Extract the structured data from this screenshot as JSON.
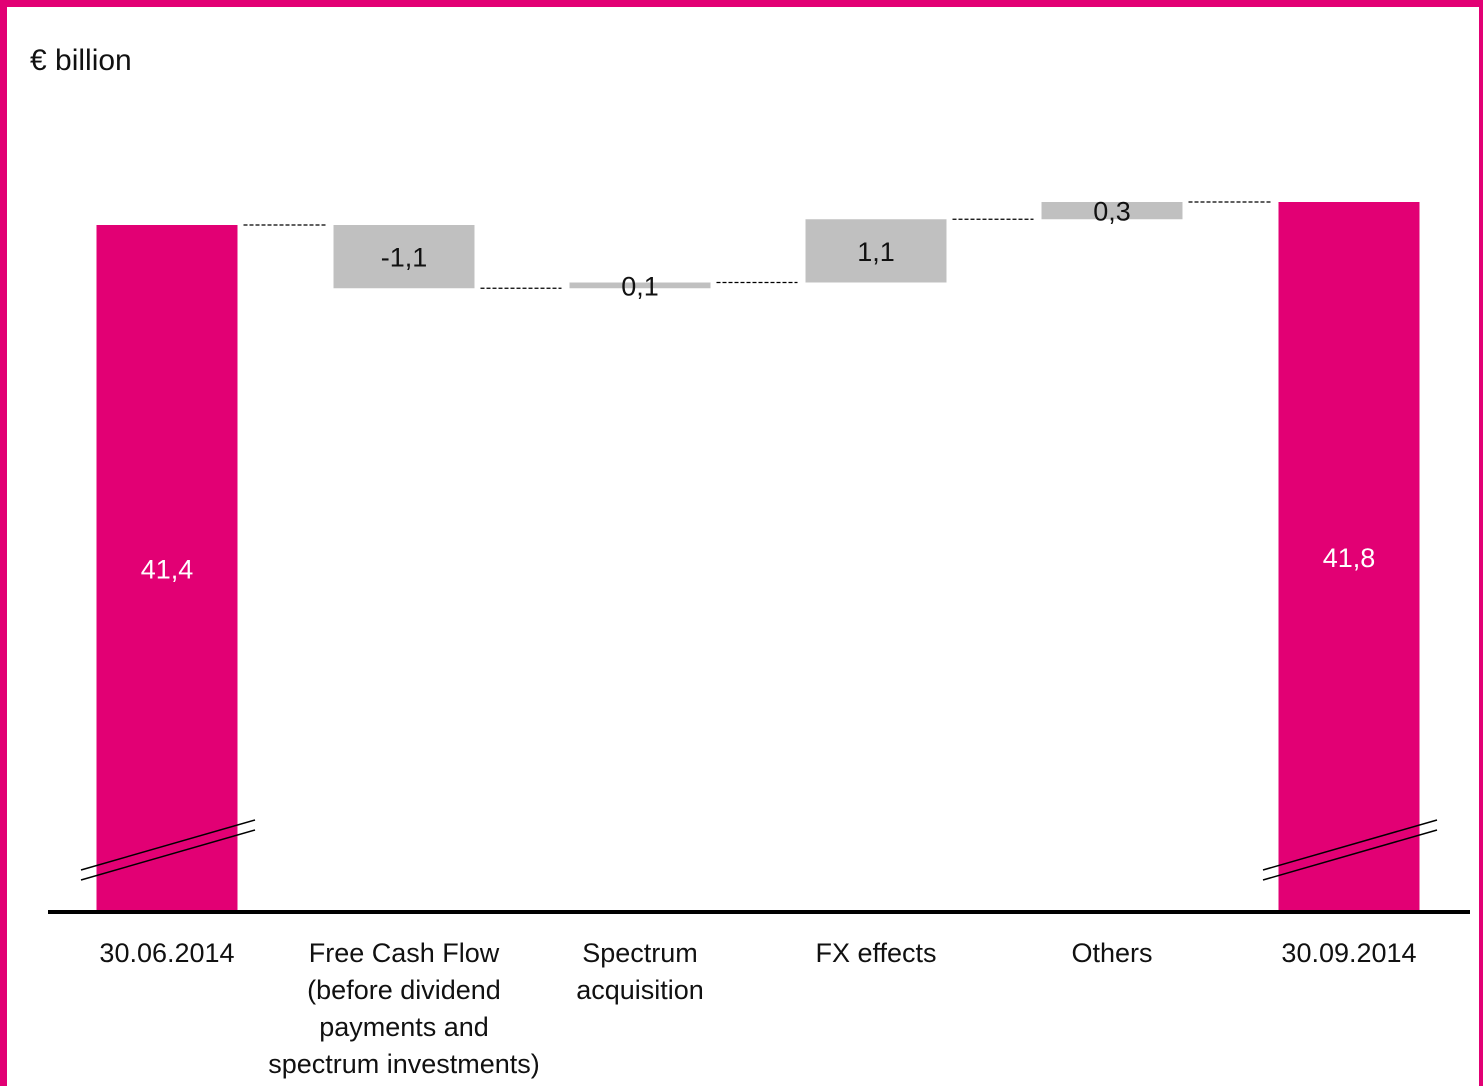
{
  "unit_label": "€ billion",
  "colors": {
    "frame": "#e20074",
    "total_bar": "#e20074",
    "delta_bar": "#c0c0c0",
    "axis": "#000000",
    "total_label": "#ffffff",
    "delta_label": "#111111"
  },
  "chart_data": {
    "type": "bar",
    "subtype": "waterfall",
    "ylabel": "€ billion",
    "axis_break": true,
    "categories": [
      "30.06.2014",
      "Free Cash Flow (before dividend payments and spectrum investments)",
      "Spectrum acquisition",
      "FX effects",
      "Others",
      "30.09.2014"
    ],
    "category_lines": [
      [
        "30.06.2014"
      ],
      [
        "Free Cash Flow",
        "(before dividend",
        "payments and",
        "spectrum investments)"
      ],
      [
        "Spectrum",
        "acquisition"
      ],
      [
        "FX effects"
      ],
      [
        "Others"
      ],
      [
        "30.09.2014"
      ]
    ],
    "kinds": [
      "total",
      "delta",
      "delta",
      "delta",
      "delta",
      "total"
    ],
    "values": [
      41.4,
      -1.1,
      0.1,
      1.1,
      0.3,
      41.8
    ],
    "value_labels": [
      "41,4",
      "-1,1",
      "0,1",
      "1,1",
      "0,3",
      "41,8"
    ]
  }
}
